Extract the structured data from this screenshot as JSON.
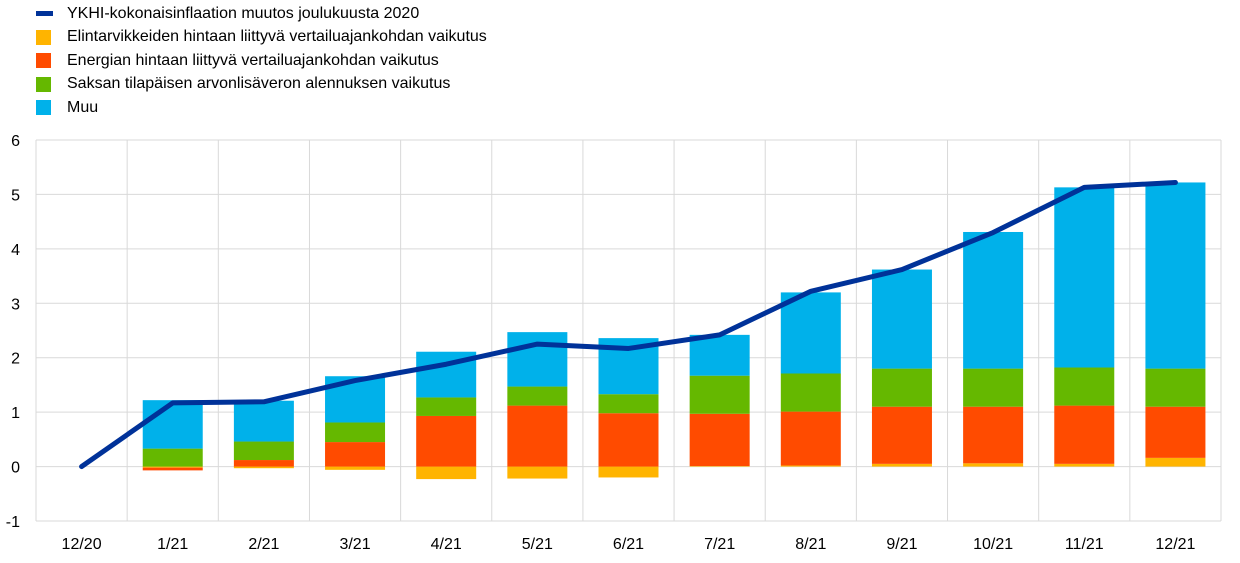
{
  "legend": [
    {
      "label": "YKHI-kokonaisinflaation muutos joulukuusta 2020",
      "color": "#003299",
      "kind": "line"
    },
    {
      "label": "Elintarvikkeiden hintaan liittyvä vertailuajankohdan vaikutus",
      "color": "#FFB400",
      "kind": "bar"
    },
    {
      "label": "Energian hintaan liittyvä vertailuajankohdan vaikutus",
      "color": "#FF4B00",
      "kind": "bar"
    },
    {
      "label": "Saksan tilapäisen arvonlisäveron alennuksen vaikutus",
      "color": "#65B800",
      "kind": "bar"
    },
    {
      "label": "Muu",
      "color": "#00B1EA",
      "kind": "bar"
    }
  ],
  "chart_data": {
    "type": "bar",
    "stacked": true,
    "categories": [
      "12/20",
      "1/21",
      "2/21",
      "3/21",
      "4/21",
      "5/21",
      "6/21",
      "7/21",
      "8/21",
      "9/21",
      "10/21",
      "11/21",
      "12/21"
    ],
    "yticks": [
      "6",
      "5",
      "4",
      "3",
      "2",
      "1",
      "0",
      "-1"
    ],
    "ylim": [
      -1,
      6
    ],
    "grid": true,
    "legend_position": "top-left",
    "series": [
      {
        "name": "Elintarvikkeiden hintaan liittyvä vertailuajankohdan vaikutus",
        "color": "#FFB400",
        "values": [
          null,
          -0.02,
          -0.03,
          -0.06,
          -0.23,
          -0.22,
          -0.2,
          0.01,
          0.02,
          0.05,
          0.06,
          0.05,
          0.16
        ]
      },
      {
        "name": "Energian hintaan liittyvä vertailuajankohdan vaikutus",
        "color": "#FF4B00",
        "values": [
          null,
          -0.05,
          0.12,
          0.45,
          0.93,
          1.12,
          0.98,
          0.96,
          0.99,
          1.05,
          1.04,
          1.07,
          0.94
        ]
      },
      {
        "name": "Saksan tilapäisen arvonlisäveron alennuksen vaikutus",
        "color": "#65B800",
        "values": [
          null,
          0.33,
          0.34,
          0.36,
          0.34,
          0.35,
          0.35,
          0.7,
          0.7,
          0.7,
          0.7,
          0.7,
          0.7
        ]
      },
      {
        "name": "Muu",
        "color": "#00B1EA",
        "values": [
          null,
          0.89,
          0.75,
          0.85,
          0.84,
          1.0,
          1.03,
          0.75,
          1.49,
          1.82,
          2.51,
          3.31,
          3.42
        ]
      }
    ],
    "line": {
      "name": "YKHI-kokonaisinflaation muutos joulukuusta 2020",
      "color": "#003299",
      "values": [
        0,
        1.17,
        1.19,
        1.58,
        1.88,
        2.25,
        2.17,
        2.42,
        3.22,
        3.62,
        4.3,
        5.13,
        5.22
      ]
    }
  }
}
